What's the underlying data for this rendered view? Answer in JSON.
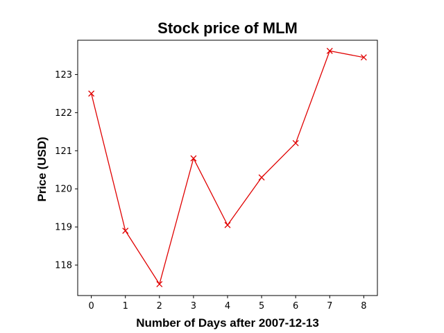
{
  "chart_data": {
    "type": "line",
    "title": "Stock price of MLM",
    "xlabel": "Number of Days after 2007-12-13",
    "ylabel": "Price (USD)",
    "x": [
      0,
      1,
      2,
      3,
      4,
      5,
      6,
      7,
      8
    ],
    "series": [
      {
        "values": [
          122.5,
          118.9,
          117.5,
          120.8,
          119.05,
          120.3,
          121.2,
          123.62,
          123.45
        ],
        "color": "#e00000",
        "marker": "x"
      }
    ],
    "xlim": [
      -0.4,
      8.4
    ],
    "ylim": [
      117.2,
      123.9
    ],
    "xticks": [
      "0",
      "1",
      "2",
      "3",
      "4",
      "5",
      "6",
      "7",
      "8"
    ],
    "yticks": [
      "118",
      "119",
      "120",
      "121",
      "122",
      "123"
    ],
    "grid": false
  }
}
